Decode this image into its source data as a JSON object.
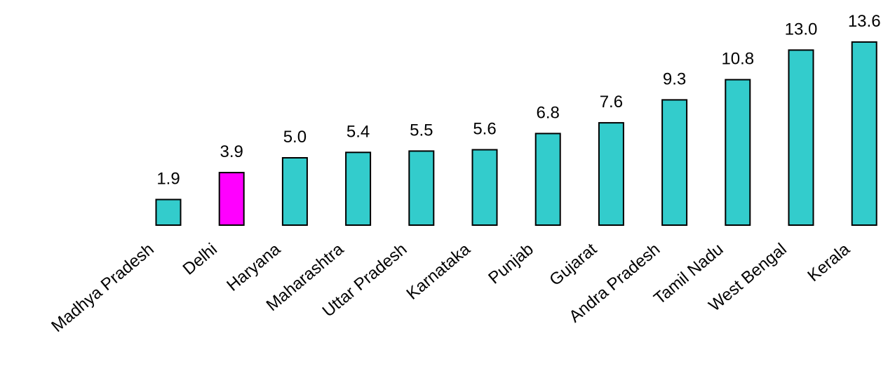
{
  "chart_data": {
    "type": "bar",
    "title": "",
    "xlabel": "",
    "ylabel": "",
    "categories": [
      "Madhya Pradesh",
      "Delhi",
      "Haryana",
      "Maharashtra",
      "Uttar Pradesh",
      "Karnataka",
      "Punjab",
      "Gujarat",
      "Andra Pradesh",
      "Tamil Nadu",
      "West Bengal",
      "Kerala"
    ],
    "values": [
      1.9,
      3.9,
      5.0,
      5.4,
      5.5,
      5.6,
      6.8,
      7.6,
      9.3,
      10.8,
      13.0,
      13.6
    ],
    "value_labels": [
      "1.9",
      "3.9",
      "5.0",
      "5.4",
      "5.5",
      "5.6",
      "6.8",
      "7.6",
      "9.3",
      "10.8",
      "13.0",
      "13.6"
    ],
    "highlight_index": 1,
    "colors": {
      "bar": "#33CCCC",
      "highlight": "#FF00FF",
      "outline": "#000000"
    },
    "ylim": [
      0,
      13.6
    ],
    "grid": false,
    "axes_visible": false,
    "legend": "none"
  }
}
